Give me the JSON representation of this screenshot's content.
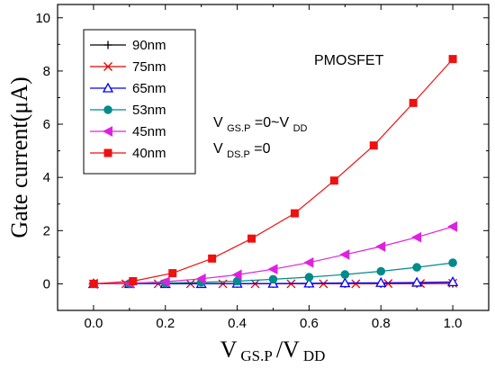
{
  "chart_data": {
    "type": "line",
    "title": "",
    "xlabel": {
      "main": "V",
      "sub": "GS.P",
      "sep": "/V",
      "sub2": "DD"
    },
    "ylabel": "Gate current(μA)",
    "xlim": [
      -0.1,
      1.1
    ],
    "ylim": [
      -1,
      10.5
    ],
    "x_ticks": [
      0.0,
      0.2,
      0.4,
      0.6,
      0.8,
      1.0
    ],
    "x_tick_labels": [
      "0.0",
      "0.2",
      "0.4",
      "0.6",
      "0.8",
      "1.0"
    ],
    "y_ticks": [
      0,
      2,
      4,
      6,
      8,
      10
    ],
    "y_tick_labels": [
      "0",
      "2",
      "4",
      "6",
      "8",
      "10"
    ],
    "grid": false,
    "legend_position": "top-left",
    "annotations": [
      {
        "kind": "plain",
        "text": "PMOSFET"
      },
      {
        "kind": "subscript",
        "main": "V",
        "sub": "GS.P",
        "rest": "=0~V",
        "sub2": "DD"
      },
      {
        "kind": "subscript",
        "main": "V",
        "sub": "DS.P",
        "rest": "=0"
      }
    ],
    "series": [
      {
        "name": "90nm",
        "color": "#000000",
        "marker": "plus",
        "x": [
          0.0,
          0.1,
          0.2,
          0.3,
          0.4,
          0.5,
          0.6,
          0.7,
          0.8,
          0.9,
          1.0
        ],
        "y": [
          0,
          0,
          0,
          0,
          0,
          0,
          0,
          0,
          0,
          0.01,
          0.01
        ]
      },
      {
        "name": "75nm",
        "color": "#e00000",
        "marker": "x",
        "x": [
          0.0,
          0.09,
          0.18,
          0.27,
          0.36,
          0.45,
          0.55,
          0.64,
          0.73,
          0.82,
          0.91,
          1.0
        ],
        "y": [
          0,
          0,
          0,
          0,
          0,
          0,
          0,
          0,
          0,
          0.01,
          0.01,
          0.02
        ]
      },
      {
        "name": "65nm",
        "color": "#0000ff",
        "marker": "triangle-up-open",
        "x": [
          0.0,
          0.1,
          0.2,
          0.3,
          0.4,
          0.5,
          0.6,
          0.7,
          0.8,
          0.9,
          1.0
        ],
        "y": [
          0,
          0,
          0,
          0,
          0.01,
          0.01,
          0.02,
          0.03,
          0.04,
          0.05,
          0.07
        ]
      },
      {
        "name": "53nm",
        "color": "#008b8b",
        "marker": "circle",
        "x": [
          0.0,
          0.1,
          0.2,
          0.3,
          0.4,
          0.5,
          0.6,
          0.7,
          0.8,
          0.9,
          1.0
        ],
        "y": [
          0,
          0.01,
          0.03,
          0.06,
          0.1,
          0.17,
          0.25,
          0.35,
          0.47,
          0.62,
          0.79
        ]
      },
      {
        "name": "45nm",
        "color": "#e020e0",
        "marker": "triangle-left",
        "x": [
          0.0,
          0.1,
          0.2,
          0.3,
          0.4,
          0.5,
          0.6,
          0.7,
          0.8,
          0.9,
          1.0
        ],
        "y": [
          0,
          0.02,
          0.08,
          0.19,
          0.34,
          0.55,
          0.8,
          1.1,
          1.4,
          1.75,
          2.15
        ]
      },
      {
        "name": "40nm",
        "color": "#ee1111",
        "marker": "square",
        "x": [
          0.0,
          0.11,
          0.22,
          0.33,
          0.44,
          0.56,
          0.67,
          0.78,
          0.89,
          1.0
        ],
        "y": [
          0,
          0.1,
          0.4,
          0.95,
          1.7,
          2.65,
          3.88,
          5.2,
          6.8,
          8.45
        ]
      }
    ]
  }
}
